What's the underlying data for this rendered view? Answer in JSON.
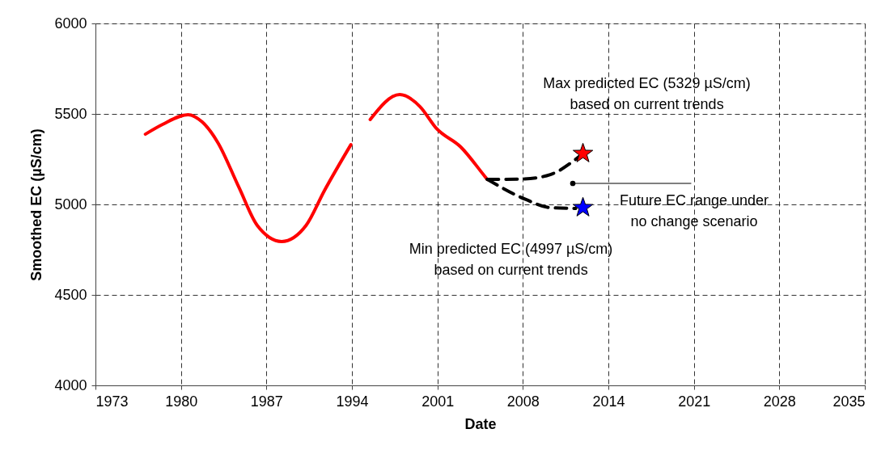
{
  "chart_data": {
    "type": "line",
    "xlabel": "Date",
    "ylabel": "Smoothed EC (µS/cm)",
    "xlim": [
      "1973-01-01",
      "2035-12-31"
    ],
    "ylim": [
      4000,
      6000
    ],
    "xticks": [
      {
        "value": "1973-01-01",
        "label": "1973"
      },
      {
        "value": "1980-01-01",
        "label": "1980"
      },
      {
        "value": "1987-01-01",
        "label": "1987"
      },
      {
        "value": "1994-01-01",
        "label": "1994"
      },
      {
        "value": "2001-01-01",
        "label": "2001"
      },
      {
        "value": "2008-01-01",
        "label": "2008"
      },
      {
        "value": "2014-12-31",
        "label": "2014"
      },
      {
        "value": "2021-12-31",
        "label": "2021"
      },
      {
        "value": "2028-12-31",
        "label": "2028"
      },
      {
        "value": "2035-12-31",
        "label": "2035"
      }
    ],
    "yticks": [
      4000,
      4500,
      5000,
      5500,
      6000
    ],
    "grid": true,
    "series": [
      {
        "color": "#ff0000",
        "line_style": "solid",
        "x": [
          "1977-02",
          "1978-07",
          "1980-08",
          "1981-10",
          "1983-01",
          "1984-10",
          "1986-04",
          "1988-04",
          "1990-04",
          "1991-10",
          "1993-12",
          "1994-09",
          "1995-07",
          "1997-12",
          "1999-08",
          "2000-12",
          "2002-12",
          "2004-12",
          "2005-02"
        ],
        "values": [
          5388,
          5442,
          5496,
          5455,
          5344,
          5094,
          4884,
          4795,
          4884,
          5076,
          5330,
          null,
          5469,
          5607,
          5540,
          5420,
          5317,
          5152,
          5138
        ]
      },
      {
        "color": "#000000",
        "line_style": "dashed",
        "x": [
          "2005-02",
          "2008-01",
          "2010-04",
          "2012-10"
        ],
        "values": [
          5138,
          5140,
          5165,
          5272
        ]
      },
      {
        "color": "#000000",
        "line_style": "dashed",
        "x": [
          "2005-02",
          "2008-04",
          "2010-04",
          "2012-05"
        ],
        "values": [
          5138,
          5027,
          4982,
          4978
        ]
      },
      {
        "type": "scatter",
        "color": "#ff0000",
        "marker": "star",
        "x": [
          "2012-12"
        ],
        "values": [
          5281
        ]
      },
      {
        "type": "scatter",
        "color": "#0000ff",
        "marker": "star",
        "x": [
          "2012-12"
        ],
        "values": [
          4982
        ]
      }
    ],
    "annotations": [
      {
        "text": "Max predicted EC (5329 µS/cm)\nbased on current trends",
        "x": "2012-12",
        "y": 5281
      },
      {
        "text": "Min predicted EC (4997 µS/cm)\nbased on current trends",
        "x": "2012-12",
        "y": 4982
      },
      {
        "text": "Future EC range under\nno change scenario",
        "x": "2012-02",
        "y": 5116
      }
    ]
  }
}
